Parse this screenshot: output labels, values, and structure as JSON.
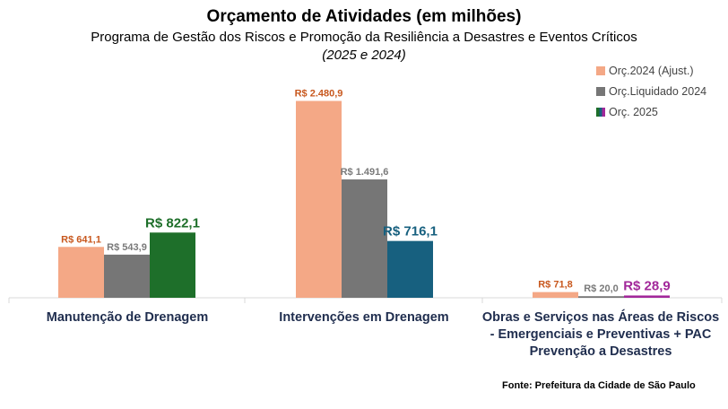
{
  "title": "Orçamento de Atividades (em milhões)",
  "subtitle": "Programa de Gestão dos Riscos e Promoção da Resiliência a Desastres e Eventos Críticos",
  "period": "(2025 e 2024)",
  "source": "Fonte: Prefeitura da Cidade de São Paulo",
  "chart_data": {
    "type": "bar",
    "categories": [
      "Manutenção de Drenagem",
      "Intervenções em Drenagem",
      "Obras e Serviços nas Áreas de Riscos - Emergenciais e Preventivas + PAC Prevenção a Desastres"
    ],
    "series": [
      {
        "name": "Orç.2024 (Ajust.)",
        "values": [
          641.1,
          2480.9,
          71.8
        ],
        "labels": [
          "R$ 641,1",
          "R$ 2.480,9",
          "R$ 71,8"
        ],
        "color": "#F4A886",
        "label_color": "#C8581E"
      },
      {
        "name": "Orç.Liquidado 2024",
        "values": [
          543.9,
          1491.6,
          20.0
        ],
        "labels": [
          "R$ 543,9",
          "R$ 1.491,6",
          "R$ 20,0"
        ],
        "color": "#767676",
        "label_color": "#7A7A7A"
      },
      {
        "name": "Orç. 2025",
        "values": [
          822.1,
          716.1,
          28.9
        ],
        "labels": [
          "R$ 822,1",
          "R$ 716,1",
          "R$ 28,9"
        ],
        "colors": [
          "#1E6F2A",
          "#17607F",
          "#A2289A"
        ]
      }
    ],
    "ylim": [
      0,
      2600
    ],
    "grid": false,
    "legend": "top-right"
  }
}
